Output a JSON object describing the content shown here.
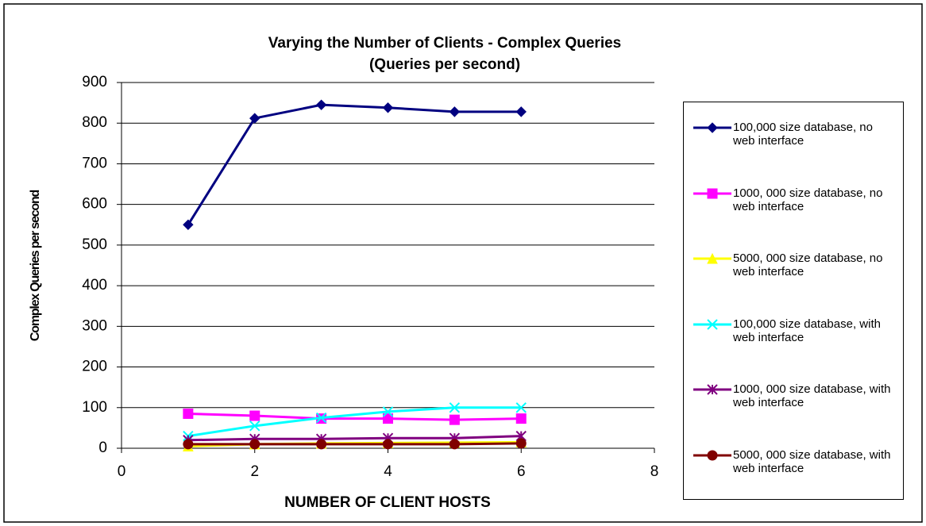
{
  "chart_data": {
    "type": "line",
    "title": "Varying the Number of Clients - Complex Queries",
    "subtitle": "(Queries per second)",
    "x_label": "NUMBER OF CLIENT HOSTS",
    "y_label": "Complex Queries per second",
    "x": [
      1,
      2,
      3,
      4,
      5,
      6
    ],
    "series": [
      {
        "name": "100,000 size database, no web interface",
        "color": "#000080",
        "marker": "diamond",
        "values": [
          550,
          812,
          845,
          838,
          828,
          828
        ]
      },
      {
        "name": "1000, 000 size database, no web interface",
        "color": "#ff00ff",
        "marker": "square",
        "values": [
          85,
          80,
          73,
          73,
          70,
          73
        ]
      },
      {
        "name": "5000, 000 size database, no web interface",
        "color": "#ffff00",
        "marker": "triangle",
        "values": [
          5,
          10,
          12,
          13,
          14,
          15
        ]
      },
      {
        "name": "100,000 size database, with web interface",
        "color": "#00ffff",
        "marker": "x",
        "values": [
          30,
          55,
          75,
          90,
          100,
          100
        ]
      },
      {
        "name": "1000, 000 size database, with web interface",
        "color": "#800080",
        "marker": "star",
        "values": [
          20,
          23,
          23,
          25,
          25,
          30
        ]
      },
      {
        "name": "5000, 000 size database, with web interface",
        "color": "#800000",
        "marker": "circle",
        "values": [
          10,
          10,
          10,
          10,
          10,
          12
        ]
      }
    ],
    "xlim": [
      0,
      8
    ],
    "xticks": [
      0,
      2,
      4,
      6,
      8
    ],
    "ylim": [
      0,
      900
    ],
    "yticks": [
      0,
      100,
      200,
      300,
      400,
      500,
      600,
      700,
      800,
      900
    ],
    "grid": true,
    "legend": "right"
  }
}
